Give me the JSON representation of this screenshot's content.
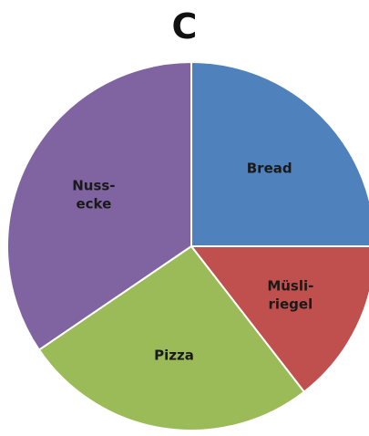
{
  "chart_data": {
    "type": "pie",
    "title": "C",
    "start": "12 o'clock, clockwise",
    "slices": [
      {
        "label": [
          "Bread"
        ],
        "value": 25,
        "color": "#4f81bd"
      },
      {
        "label": [
          "Müsli-",
          "riegel"
        ],
        "value": 14.5,
        "color": "#c0504d"
      },
      {
        "label": [
          "Pizza"
        ],
        "value": 26,
        "color": "#9bbb59"
      },
      {
        "label": [
          "Nuss-",
          "ecke"
        ],
        "value": 34.5,
        "color": "#8064a2"
      }
    ]
  }
}
